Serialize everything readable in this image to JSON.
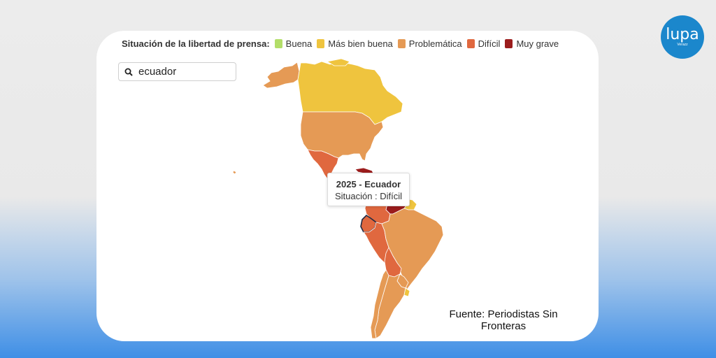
{
  "legend": {
    "title": "Situación de la libertad de prensa:",
    "items": [
      {
        "label": "Buena",
        "color": "#b3de69"
      },
      {
        "label": "Más bien buena",
        "color": "#efc43e"
      },
      {
        "label": "Problemática",
        "color": "#e59a55"
      },
      {
        "label": "Difícil",
        "color": "#e0683f"
      },
      {
        "label": "Muy grave",
        "color": "#9b1c1c"
      }
    ]
  },
  "search": {
    "icon": "search-icon",
    "value": "ecuador"
  },
  "tooltip": {
    "title": "2025 - Ecuador",
    "status": "Situación : Difícil"
  },
  "source": {
    "line1": "Fuente: Periodistas Sin",
    "line2": "Fronteras"
  },
  "logo": {
    "text": "lupa",
    "subtext": "Verazz",
    "color": "#1b87cc"
  },
  "map": {
    "highlighted_country": "Ecuador",
    "highlight_outline_color": "#1f2a44",
    "colors": {
      "mas_bien_buena": "#efc43e",
      "problematica": "#e59a55",
      "dificil": "#e0683f",
      "muy_grave": "#9b1c1c",
      "border": "#ffffff"
    }
  }
}
